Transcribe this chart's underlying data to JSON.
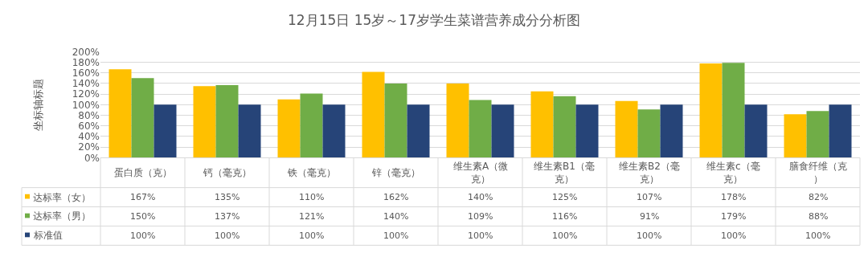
{
  "chart_data": {
    "type": "bar",
    "title": "12月15日 15岁～17岁学生菜谱营养成分分析图",
    "ylabel": "坐标轴标题",
    "categories": [
      "蛋白质（克）",
      "钙（毫克）",
      "铁（毫克）",
      "锌（毫克）",
      "维生素A（微克）",
      "维生素B1（毫克）",
      "维生素B2（毫克）",
      "维生素c（毫克）",
      "膳食纤维（克）"
    ],
    "series": [
      {
        "name": "达标率（女）",
        "color": "#ffc000",
        "values": [
          167,
          135,
          110,
          162,
          140,
          125,
          107,
          178,
          82
        ],
        "value_labels": [
          "167%",
          "135%",
          "110%",
          "162%",
          "140%",
          "125%",
          "107%",
          "178%",
          "82%"
        ]
      },
      {
        "name": "达标率（男）",
        "color": "#70ad47",
        "values": [
          150,
          137,
          121,
          140,
          109,
          116,
          91,
          179,
          88
        ],
        "value_labels": [
          "150%",
          "137%",
          "121%",
          "140%",
          "109%",
          "116%",
          "91%",
          "179%",
          "88%"
        ]
      },
      {
        "name": "标准值",
        "color": "#264478",
        "values": [
          100,
          100,
          100,
          100,
          100,
          100,
          100,
          100,
          100
        ],
        "value_labels": [
          "100%",
          "100%",
          "100%",
          "100%",
          "100%",
          "100%",
          "100%",
          "100%",
          "100%"
        ]
      }
    ],
    "ylim": [
      0,
      200
    ],
    "yticks": [
      {
        "value": 0,
        "label": "0%"
      },
      {
        "value": 20,
        "label": "20%"
      },
      {
        "value": 40,
        "label": "40%"
      },
      {
        "value": 60,
        "label": "60%"
      },
      {
        "value": 80,
        "label": "80%"
      },
      {
        "value": 100,
        "label": "100%"
      },
      {
        "value": 120,
        "label": "120%"
      },
      {
        "value": 140,
        "label": "140%"
      },
      {
        "value": 160,
        "label": "160%"
      },
      {
        "value": 180,
        "label": "180%"
      },
      {
        "value": 200,
        "label": "200%"
      }
    ],
    "grid": "y",
    "legend": "bottom left"
  }
}
